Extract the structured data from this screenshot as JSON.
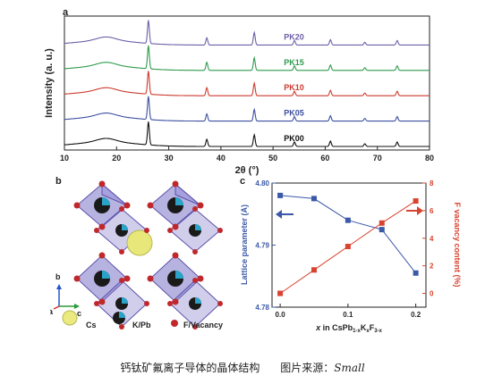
{
  "panels": {
    "a": "a",
    "b": "b",
    "c": "c"
  },
  "caption": {
    "main": "钙钛矿氟离子导体的晶体结构",
    "source": "图片来源：",
    "source_name": "Small"
  },
  "structure": {
    "axes": {
      "a": "a",
      "b": "b",
      "c": "c"
    },
    "legend": [
      {
        "label": "Cs",
        "color": "#eaea80"
      },
      {
        "label": "K/Pb",
        "color": "#1a8fb0"
      },
      {
        "label": "F/Vacancy",
        "color": "#c0282c"
      }
    ]
  },
  "chart_data": [
    {
      "type": "line",
      "panel": "a",
      "xlabel": "2θ (°)",
      "ylabel": "Intensity (a. u.)",
      "xlim": [
        10,
        80
      ],
      "xticks": [
        10,
        20,
        30,
        40,
        50,
        60,
        70,
        80
      ],
      "peaks": [
        18,
        26.1,
        37.3,
        46.4,
        54.1,
        61.0,
        67.6,
        73.8
      ],
      "series": [
        {
          "name": "PK20",
          "color": "#6d5fa8",
          "peak_heights": [
            4,
            26,
            8,
            14,
            5,
            6,
            3,
            5
          ]
        },
        {
          "name": "PK15",
          "color": "#2f9a4d",
          "peak_heights": [
            4,
            26,
            9,
            14,
            5,
            6,
            3,
            5
          ]
        },
        {
          "name": "PK10",
          "color": "#cc3a2e",
          "peak_heights": [
            4,
            26,
            9,
            14,
            5,
            6,
            3,
            5
          ]
        },
        {
          "name": "PK05",
          "color": "#3d4fa0",
          "peak_heights": [
            4,
            26,
            8,
            13,
            5,
            6,
            3,
            5
          ]
        },
        {
          "name": "PK00",
          "color": "#111111",
          "peak_heights": [
            4,
            26,
            8,
            13,
            5,
            6,
            3,
            5
          ]
        }
      ]
    },
    {
      "type": "line",
      "panel": "c",
      "xlabel_parts": [
        "x",
        " in CsPb",
        "1-x",
        "K",
        "x",
        "F",
        "3-x"
      ],
      "x": [
        0.0,
        0.05,
        0.1,
        0.15,
        0.2
      ],
      "xlim": [
        -0.012,
        0.215
      ],
      "xticks": [
        "0.0",
        "0.1",
        "0.2"
      ],
      "series": [
        {
          "ylabel": "Lattice parameter (A)",
          "axis": "left",
          "color": "#3c59a8",
          "marker": "square",
          "values": [
            4.798,
            4.7975,
            4.794,
            4.7925,
            4.7855
          ],
          "ylim": [
            4.78,
            4.8
          ],
          "yticks": [
            "4.78",
            "4.79",
            "4.80"
          ]
        },
        {
          "ylabel": "F vacancy content (%)",
          "axis": "right",
          "color": "#d8432f",
          "marker": "square",
          "values": [
            0.0,
            1.7,
            3.4,
            5.1,
            6.7
          ],
          "ylim": [
            -1,
            8
          ],
          "yticks": [
            "0",
            "2",
            "4",
            "6",
            "8"
          ]
        }
      ]
    }
  ]
}
